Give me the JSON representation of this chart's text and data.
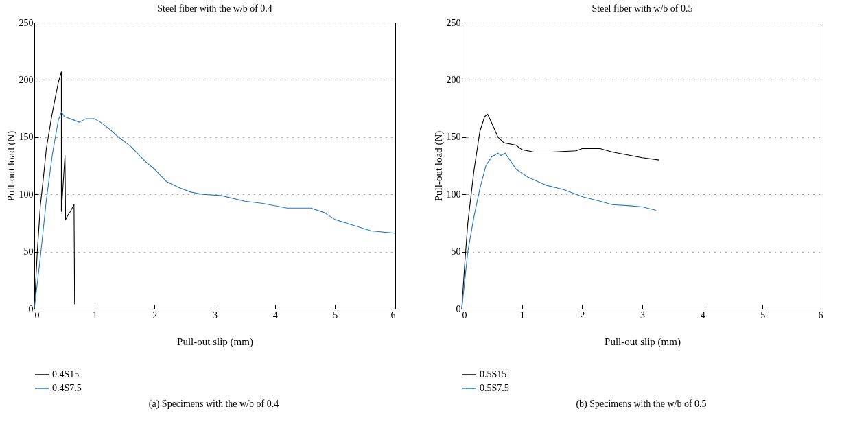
{
  "chart_data": [
    {
      "type": "line",
      "title": "Steel fiber with the w/b of 0.4",
      "xlabel": "Pull-out slip (mm)",
      "ylabel": "Pull-out load (N)",
      "xlim": [
        0,
        6
      ],
      "ylim": [
        0,
        250
      ],
      "xticks": [
        0,
        1,
        2,
        3,
        4,
        5,
        6
      ],
      "yticks": [
        0,
        50,
        100,
        150,
        200,
        250
      ],
      "grid": "y",
      "legend": "bottom",
      "line_style": "solid",
      "annotations": [
        "(a)  Specimens with the w/b of 0.4"
      ],
      "series": [
        {
          "name": "0.4S15",
          "color": "#000000",
          "x": [
            0,
            0.05,
            0.1,
            0.15,
            0.2,
            0.285,
            0.35,
            0.4,
            0.45,
            0.45,
            0.51,
            0.52,
            0.56,
            0.6,
            0.64,
            0.66,
            0.67
          ],
          "values": [
            0,
            50,
            90,
            114,
            140,
            167,
            185,
            198,
            207,
            85,
            134,
            78,
            82,
            85,
            89,
            91,
            4
          ]
        },
        {
          "name": "0.4S7.5",
          "color": "#2577c0",
          "x": [
            0,
            0.1,
            0.2,
            0.3,
            0.4,
            0.45,
            0.5,
            0.6,
            0.75,
            0.85,
            1.0,
            1.1,
            1.25,
            1.4,
            1.6,
            1.86,
            2.0,
            2.2,
            2.4,
            2.6,
            2.8,
            3.1,
            3.5,
            3.8,
            4.2,
            4.6,
            4.82,
            5.0,
            5.3,
            5.6,
            6.0
          ],
          "values": [
            0,
            45,
            95,
            135,
            165,
            172,
            168,
            166,
            163,
            166,
            166,
            163,
            157,
            150,
            142,
            128,
            122,
            111,
            106,
            102,
            100,
            99,
            94,
            92,
            88,
            88,
            84,
            78,
            73,
            68,
            66
          ]
        }
      ]
    },
    {
      "type": "line",
      "title": "Steel fiber with w/b of 0.5",
      "xlabel": "Pull-out slip (mm)",
      "ylabel": "Pull-out load (N)",
      "xlim": [
        0,
        6
      ],
      "ylim": [
        0,
        250
      ],
      "xticks": [
        0,
        1,
        2,
        3,
        4,
        5,
        6
      ],
      "yticks": [
        0,
        50,
        100,
        150,
        200,
        250
      ],
      "grid": "y",
      "legend": "bottom",
      "line_style": "solid",
      "annotations": [
        "(b)  Specimens with the w/b of 0.5"
      ],
      "series": [
        {
          "name": "0.5S15",
          "color": "#000000",
          "x": [
            0,
            0.05,
            0.1,
            0.2,
            0.3,
            0.38,
            0.43,
            0.5,
            0.6,
            0.7,
            0.9,
            1.0,
            1.2,
            1.5,
            1.9,
            2.0,
            2.3,
            2.5,
            2.8,
            3.0,
            3.28
          ],
          "values": [
            0,
            40,
            75,
            120,
            155,
            168,
            170,
            162,
            150,
            145,
            143,
            139,
            137,
            137,
            138,
            140,
            140,
            137,
            134,
            132,
            130
          ]
        },
        {
          "name": "0.5S7.5",
          "color": "#2577c0",
          "x": [
            0,
            0.1,
            0.2,
            0.3,
            0.4,
            0.5,
            0.6,
            0.65,
            0.72,
            0.8,
            0.9,
            1.1,
            1.4,
            1.7,
            2.0,
            2.3,
            2.5,
            2.8,
            3.0,
            3.23
          ],
          "values": [
            0,
            50,
            80,
            105,
            125,
            133,
            136,
            134,
            136,
            130,
            122,
            115,
            108,
            104,
            98,
            94,
            91,
            90,
            89,
            86
          ]
        }
      ]
    }
  ]
}
